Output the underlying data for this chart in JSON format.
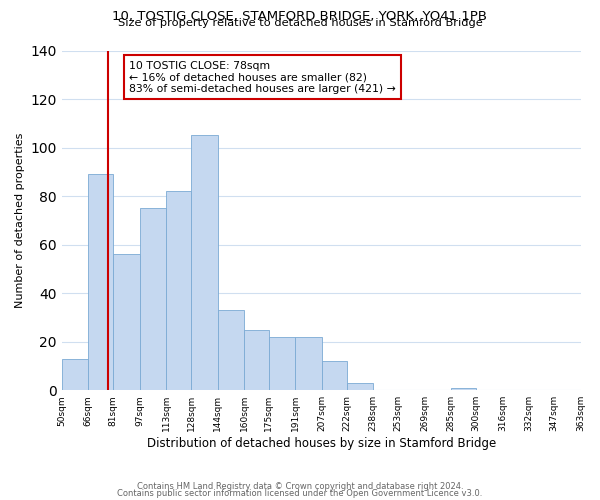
{
  "title_line1": "10, TOSTIG CLOSE, STAMFORD BRIDGE, YORK, YO41 1PB",
  "title_line2": "Size of property relative to detached houses in Stamford Bridge",
  "xlabel": "Distribution of detached houses by size in Stamford Bridge",
  "ylabel": "Number of detached properties",
  "bar_edges": [
    50,
    66,
    81,
    97,
    113,
    128,
    144,
    160,
    175,
    191,
    207,
    222,
    238,
    253,
    269,
    285,
    300,
    316,
    332,
    347,
    363
  ],
  "bar_heights": [
    13,
    89,
    56,
    75,
    82,
    105,
    33,
    25,
    22,
    22,
    12,
    3,
    0,
    0,
    0,
    1,
    0,
    0,
    0,
    0
  ],
  "tick_labels": [
    "50sqm",
    "66sqm",
    "81sqm",
    "97sqm",
    "113sqm",
    "128sqm",
    "144sqm",
    "160sqm",
    "175sqm",
    "191sqm",
    "207sqm",
    "222sqm",
    "238sqm",
    "253sqm",
    "269sqm",
    "285sqm",
    "300sqm",
    "316sqm",
    "332sqm",
    "347sqm",
    "363sqm"
  ],
  "bar_color": "#c5d8f0",
  "bar_edge_color": "#7baad4",
  "property_line_x": 78,
  "property_line_color": "#cc0000",
  "ylim": [
    0,
    140
  ],
  "yticks": [
    0,
    20,
    40,
    60,
    80,
    100,
    120,
    140
  ],
  "annotation_title": "10 TOSTIG CLOSE: 78sqm",
  "annotation_line1": "← 16% of detached houses are smaller (82)",
  "annotation_line2": "83% of semi-detached houses are larger (421) →",
  "annotation_box_color": "#ffffff",
  "annotation_box_edge": "#cc0000",
  "footer_line1": "Contains HM Land Registry data © Crown copyright and database right 2024.",
  "footer_line2": "Contains public sector information licensed under the Open Government Licence v3.0.",
  "background_color": "#ffffff",
  "grid_color": "#d0dff0"
}
